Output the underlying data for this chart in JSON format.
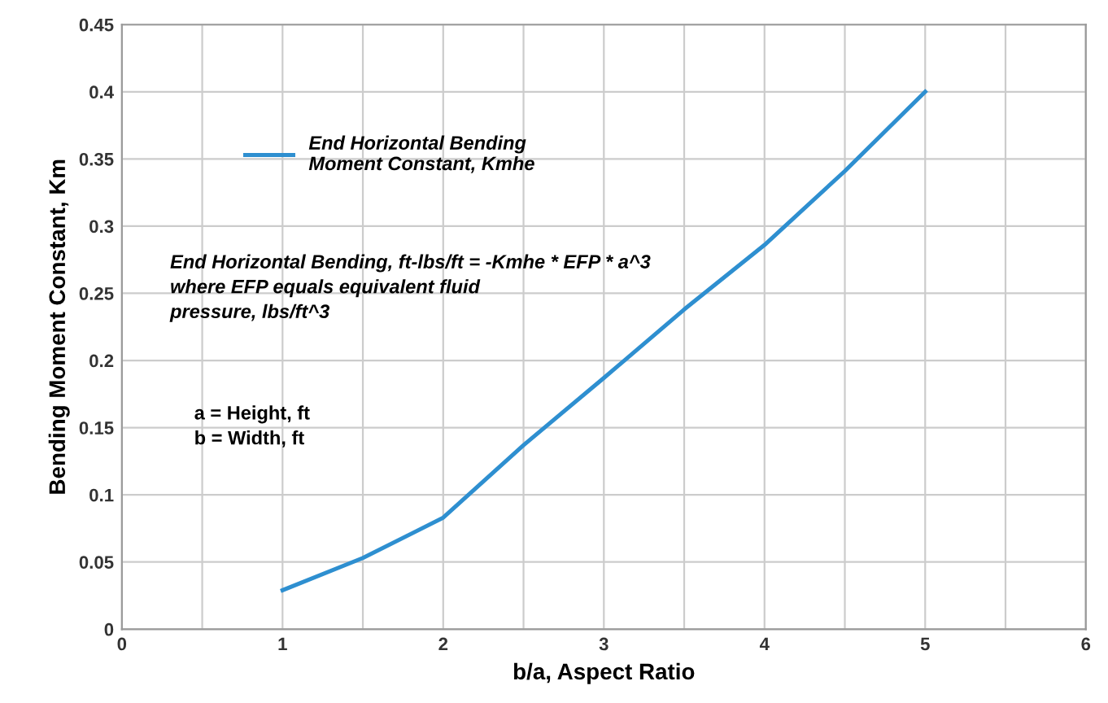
{
  "chart_data": {
    "type": "line",
    "xlabel": "b/a, Aspect Ratio",
    "ylabel": "Bending Moment Constant, Km",
    "series": [
      {
        "name": "End Horizontal Bending\nMoment Constant, Kmhe",
        "color": "#2e8fd0",
        "x": [
          1,
          1.5,
          2,
          2.5,
          3,
          3.5,
          4,
          4.5,
          5
        ],
        "values": [
          0.029,
          0.053,
          0.083,
          0.137,
          0.187,
          0.238,
          0.286,
          0.341,
          0.4
        ]
      }
    ],
    "xlim": [
      0,
      6
    ],
    "xticks": [
      0,
      1,
      2,
      3,
      4,
      5,
      6
    ],
    "ylim": [
      0,
      0.45
    ],
    "yticks": [
      0,
      0.05,
      0.1,
      0.15,
      0.2,
      0.25,
      0.3,
      0.35,
      0.4,
      0.45
    ],
    "grid": true,
    "legend": "top left",
    "marker": "none",
    "line_style": "solid",
    "annotations": [
      "End Horizontal Bending, ft-lbs/ft = -Kmhe * EFP * a^3\nwhere EFP equals equivalent fluid\npressure, lbs/ft^3",
      "a = Height, ft\nb = Width, ft"
    ]
  }
}
